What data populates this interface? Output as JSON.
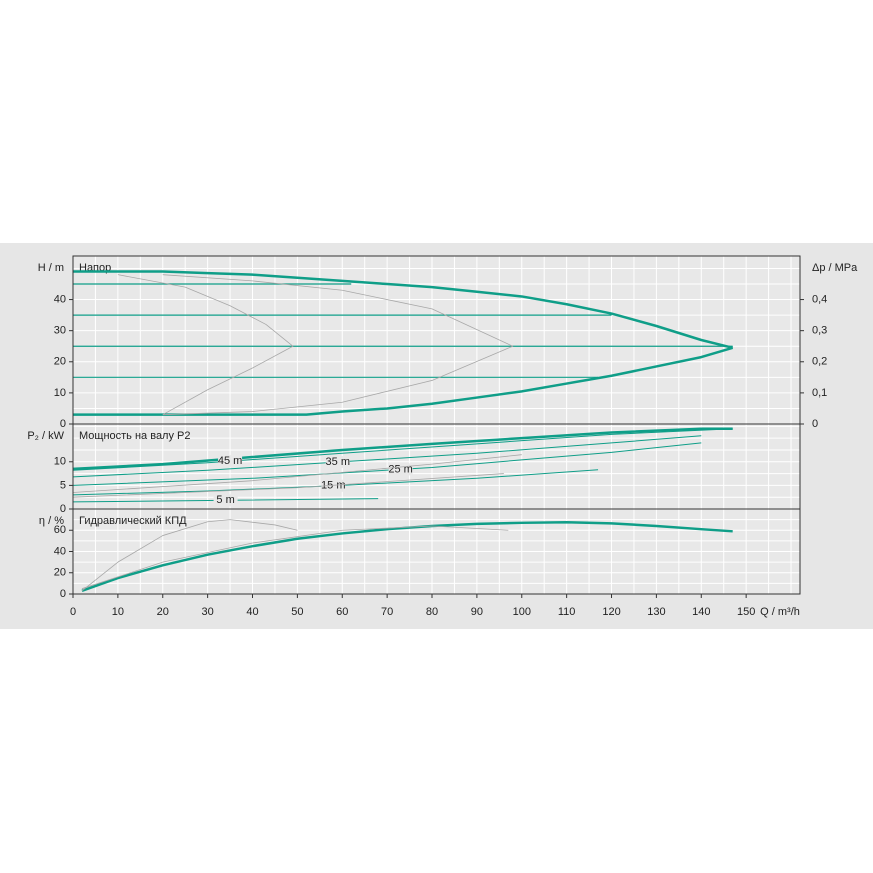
{
  "chart_data": [
    {
      "type": "line",
      "title": "Напор",
      "ylabel": "H / m",
      "y2label": "Δp / MPa",
      "xlim": [
        0,
        162
      ],
      "ylim": [
        0,
        54
      ],
      "yticks": [
        0,
        10,
        20,
        30,
        40
      ],
      "y2lim": [
        0,
        0.54
      ],
      "y2ticks": [
        0,
        {
          "value": 0.1,
          "label": "0,1"
        },
        {
          "value": 0.2,
          "label": "0,2"
        },
        {
          "value": 0.3,
          "label": "0,3"
        },
        {
          "value": 0.4,
          "label": "0,4"
        }
      ],
      "grid": true,
      "series": [
        {
          "color": "#0f9e88",
          "width": 2.5,
          "x": [
            0,
            10,
            20,
            30,
            40,
            50,
            60,
            70,
            80,
            90,
            100,
            110,
            120,
            130,
            140,
            147
          ],
          "values": [
            49,
            49,
            49,
            48.5,
            48,
            47,
            46,
            45,
            44,
            42.5,
            41,
            38.5,
            35.5,
            31.5,
            27,
            24.5
          ]
        },
        {
          "color": "#0f9e88",
          "width": 2.5,
          "x": [
            0,
            20,
            40,
            52,
            60,
            70,
            80,
            90,
            100,
            110,
            120,
            130,
            140,
            147
          ],
          "values": [
            3,
            3,
            3,
            3,
            4,
            5,
            6.5,
            8.5,
            10.5,
            13,
            15.5,
            18.5,
            21.5,
            24.5
          ]
        },
        {
          "color": "#0f9e88",
          "width": 1.2,
          "x": [
            0,
            62
          ],
          "values": [
            45,
            45
          ]
        },
        {
          "color": "#0f9e88",
          "width": 1.2,
          "x": [
            0,
            120
          ],
          "values": [
            35,
            35
          ]
        },
        {
          "color": "#0f9e88",
          "width": 1.2,
          "x": [
            0,
            147
          ],
          "values": [
            25,
            25
          ]
        },
        {
          "color": "#0f9e88",
          "width": 1.2,
          "x": [
            0,
            117
          ],
          "values": [
            15,
            15
          ]
        },
        {
          "color": "#a8a8a8",
          "width": 0.8,
          "x": [
            10,
            25,
            35,
            43,
            49,
            40,
            30,
            20
          ],
          "values": [
            48,
            44,
            38,
            32,
            25,
            18,
            11,
            3
          ]
        },
        {
          "color": "#a8a8a8",
          "width": 0.8,
          "x": [
            20,
            40,
            60,
            80,
            98,
            80,
            60,
            40,
            20
          ],
          "values": [
            48,
            46,
            43,
            37,
            25,
            14,
            7,
            4,
            3
          ]
        }
      ]
    },
    {
      "type": "line",
      "title": "Мощность на валу P2",
      "ylabel": "P₂ / kW",
      "xlim": [
        0,
        162
      ],
      "ylim": [
        0,
        18
      ],
      "yticks": [
        0,
        5,
        10
      ],
      "grid": true,
      "series": [
        {
          "color": "#0f9e88",
          "width": 2.5,
          "x": [
            0,
            20,
            40,
            60,
            80,
            100,
            120,
            140,
            147
          ],
          "values": [
            8.5,
            9.5,
            11,
            12.5,
            13.8,
            15,
            16.2,
            17,
            17
          ]
        },
        {
          "name": "45 m",
          "color": "#0f9e88",
          "width": 1,
          "x": [
            0,
            30,
            60,
            90,
            120,
            147
          ],
          "values": [
            8.2,
            9.8,
            11.8,
            13.8,
            15.8,
            17
          ]
        },
        {
          "name": "35 m",
          "color": "#0f9e88",
          "width": 1,
          "x": [
            0,
            30,
            60,
            90,
            120,
            140
          ],
          "values": [
            6.8,
            8.2,
            10,
            11.8,
            14,
            15.5
          ]
        },
        {
          "name": "25 m",
          "color": "#0f9e88",
          "width": 1,
          "x": [
            0,
            40,
            80,
            120,
            140
          ],
          "values": [
            5,
            6.5,
            8.8,
            12,
            14
          ]
        },
        {
          "name": "15 m",
          "color": "#0f9e88",
          "width": 1,
          "x": [
            0,
            30,
            60,
            90,
            117
          ],
          "values": [
            3,
            3.8,
            5,
            6.5,
            8.3
          ]
        },
        {
          "name": "5 m",
          "color": "#0f9e88",
          "width": 1,
          "x": [
            0,
            30,
            68
          ],
          "values": [
            1.5,
            1.8,
            2.2
          ]
        },
        {
          "color": "#a8a8a8",
          "width": 0.8,
          "x": [
            0,
            40,
            80,
            100
          ],
          "values": [
            3.5,
            6,
            9.5,
            11.5
          ]
        },
        {
          "color": "#a8a8a8",
          "width": 0.8,
          "x": [
            0,
            50,
            96
          ],
          "values": [
            2.5,
            4.5,
            7.5
          ]
        }
      ]
    },
    {
      "type": "line",
      "title": "Гидравлический КПД",
      "ylabel": "η / %",
      "xlabel": "Q / m³/h",
      "xlim": [
        0,
        162
      ],
      "ylim": [
        0,
        80
      ],
      "yticks": [
        0,
        20,
        40,
        60
      ],
      "xticks": [
        0,
        10,
        20,
        30,
        40,
        50,
        60,
        70,
        80,
        90,
        100,
        110,
        120,
        130,
        140,
        150
      ],
      "grid": true,
      "series": [
        {
          "color": "#0f9e88",
          "width": 2.5,
          "x": [
            2,
            10,
            20,
            30,
            40,
            50,
            60,
            70,
            80,
            90,
            100,
            110,
            120,
            130,
            140,
            147
          ],
          "values": [
            3,
            15,
            27,
            37,
            45,
            52,
            57,
            61,
            64,
            66,
            67,
            67.5,
            66.5,
            64,
            61,
            59
          ]
        },
        {
          "color": "#a8a8a8",
          "width": 0.8,
          "x": [
            2,
            10,
            20,
            30,
            35,
            45,
            50
          ],
          "values": [
            3,
            30,
            55,
            68,
            70,
            65,
            60
          ]
        },
        {
          "color": "#a8a8a8",
          "width": 0.8,
          "x": [
            2,
            20,
            40,
            60,
            80,
            97
          ],
          "values": [
            5,
            30,
            48,
            60,
            64,
            60
          ]
        }
      ]
    }
  ]
}
